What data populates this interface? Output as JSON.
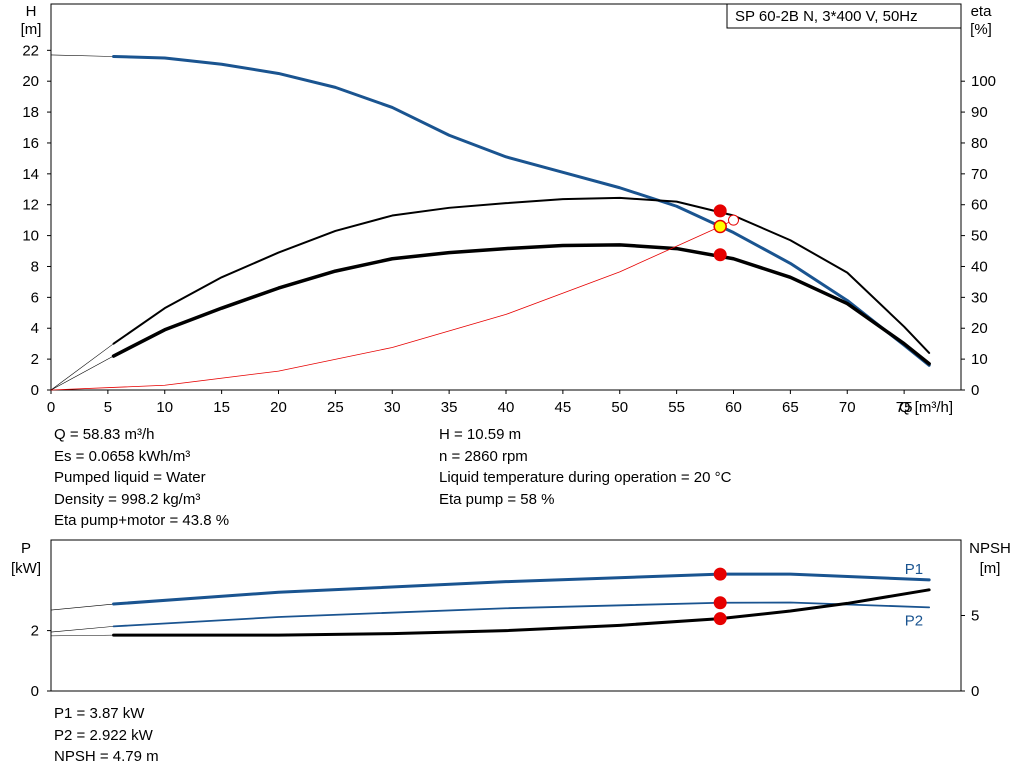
{
  "model_label": "SP 60-2B N, 3*400 V, 50Hz",
  "info": {
    "col1": [
      "Q = 58.83 m³/h",
      "Es = 0.0658 kWh/m³",
      "Pumped liquid = Water",
      "Density = 998.2 kg/m³",
      "Eta pump+motor = 43.8 %"
    ],
    "col2": [
      "H = 10.59 m",
      "n = 2860 rpm",
      "Liquid temperature during operation = 20 °C",
      "Eta pump = 58 %"
    ],
    "col3": [
      "P1 = 3.87 kW",
      "P2 = 2.922 kW",
      "NPSH = 4.79 m"
    ]
  },
  "colors": {
    "blue": "#1a5490",
    "red": "#e60000",
    "yellow": "#ffff00",
    "axis": "#000000"
  },
  "chart_data": [
    {
      "type": "line",
      "xlabel": "Q [m³/h]",
      "ylabel": [
        "H",
        "[m]"
      ],
      "y2label": [
        "eta",
        "[%]"
      ],
      "xlim": [
        0,
        80
      ],
      "ylim": [
        0,
        25
      ],
      "y2lim": [
        0,
        125
      ],
      "xticks": [
        0,
        5,
        10,
        15,
        20,
        25,
        30,
        35,
        40,
        45,
        50,
        55,
        60,
        65,
        70,
        75
      ],
      "yticks": [
        0,
        2,
        4,
        6,
        8,
        10,
        12,
        14,
        16,
        18,
        20,
        22
      ],
      "y2ticks": [
        0,
        10,
        20,
        30,
        40,
        50,
        60,
        70,
        80,
        90,
        100
      ],
      "series": [
        {
          "role": "H",
          "axis": "y",
          "color": "blue",
          "width": 3,
          "x": [
            5.5,
            10,
            15,
            20,
            25,
            30,
            35,
            40,
            45,
            50,
            55,
            60,
            65,
            70,
            75,
            77.2
          ],
          "y": [
            21.6,
            21.5,
            21.1,
            20.5,
            19.6,
            18.3,
            16.5,
            15.1,
            14.1,
            13.1,
            11.9,
            10.2,
            8.2,
            5.8,
            2.9,
            1.6
          ],
          "ext_x": [
            0,
            5.5
          ],
          "ext_y": [
            21.7,
            21.6
          ]
        },
        {
          "role": "eta_pump",
          "axis": "y2",
          "color": "black",
          "width": 2,
          "x": [
            5.5,
            10,
            15,
            20,
            25,
            30,
            35,
            40,
            45,
            50,
            55,
            60,
            65,
            70,
            75,
            77.2
          ],
          "y": [
            15,
            26.5,
            36.5,
            44.5,
            51.5,
            56.5,
            59,
            60.5,
            61.8,
            62.2,
            61,
            56.5,
            48.5,
            38,
            20.5,
            12
          ],
          "ext_x": [
            0,
            5.5
          ],
          "ext_y": [
            0,
            15
          ]
        },
        {
          "role": "eta_total",
          "axis": "y2",
          "color": "black",
          "width": 3.5,
          "x": [
            5.5,
            10,
            15,
            20,
            25,
            30,
            35,
            40,
            45,
            50,
            55,
            60,
            65,
            70,
            75,
            77.2
          ],
          "y": [
            11,
            19.5,
            26.5,
            33,
            38.5,
            42.5,
            44.5,
            45.8,
            46.8,
            47,
            45.8,
            42.5,
            36.5,
            28,
            15,
            8.5
          ],
          "ext_x": [
            0,
            5.5
          ],
          "ext_y": [
            0,
            11
          ]
        },
        {
          "role": "system",
          "axis": "y",
          "color": "red",
          "width": 0.8,
          "x": [
            0,
            10,
            20,
            30,
            40,
            50,
            58.83,
            60
          ],
          "y": [
            0,
            0.306,
            1.224,
            2.754,
            4.896,
            7.65,
            10.59,
            11.0
          ]
        }
      ],
      "markers": [
        {
          "axis": "y2",
          "x": 58.83,
          "y": 58,
          "style": "red"
        },
        {
          "axis": "y2",
          "x": 58.83,
          "y": 43.8,
          "style": "red"
        },
        {
          "axis": "y",
          "x": 58.83,
          "y": 10.59,
          "style": "yellow"
        },
        {
          "axis": "y",
          "x": 60,
          "y": 11.0,
          "style": "hollow"
        }
      ]
    },
    {
      "type": "line",
      "ylabel": [
        "P",
        "[kW]"
      ],
      "y2label": [
        "NPSH",
        "[m]"
      ],
      "xlim": [
        0,
        80
      ],
      "ylim": [
        0,
        5
      ],
      "y2lim": [
        0,
        10
      ],
      "yticks": [
        0,
        2
      ],
      "y2ticks": [
        0,
        5
      ],
      "series": [
        {
          "name": "P1",
          "axis": "y",
          "color": "blue",
          "width": 3,
          "x": [
            5.5,
            20,
            40,
            58.83,
            65,
            77.2
          ],
          "y": [
            2.88,
            3.27,
            3.62,
            3.87,
            3.87,
            3.68
          ],
          "ext_x": [
            0,
            5.5
          ],
          "ext_y": [
            2.68,
            2.88
          ]
        },
        {
          "name": "P2",
          "axis": "y",
          "color": "blue",
          "width": 1.8,
          "x": [
            5.5,
            20,
            40,
            58.83,
            65,
            77.2
          ],
          "y": [
            2.14,
            2.45,
            2.74,
            2.922,
            2.93,
            2.77
          ],
          "ext_x": [
            0,
            5.5
          ],
          "ext_y": [
            1.95,
            2.14
          ]
        },
        {
          "role": "NPSH",
          "axis": "y2",
          "color": "black",
          "width": 3,
          "x": [
            5.5,
            20,
            30,
            40,
            50,
            58.83,
            65,
            70,
            77.2
          ],
          "y": [
            3.7,
            3.7,
            3.8,
            4.0,
            4.35,
            4.79,
            5.3,
            5.8,
            6.7
          ],
          "ext_x": [
            0,
            5.5
          ],
          "ext_y": [
            3.65,
            3.7
          ]
        }
      ],
      "markers": [
        {
          "axis": "y",
          "x": 58.83,
          "y": 3.87,
          "style": "red"
        },
        {
          "axis": "y",
          "x": 58.83,
          "y": 2.922,
          "style": "red"
        },
        {
          "axis": "y2",
          "x": 58.83,
          "y": 4.79,
          "style": "red"
        }
      ]
    }
  ]
}
